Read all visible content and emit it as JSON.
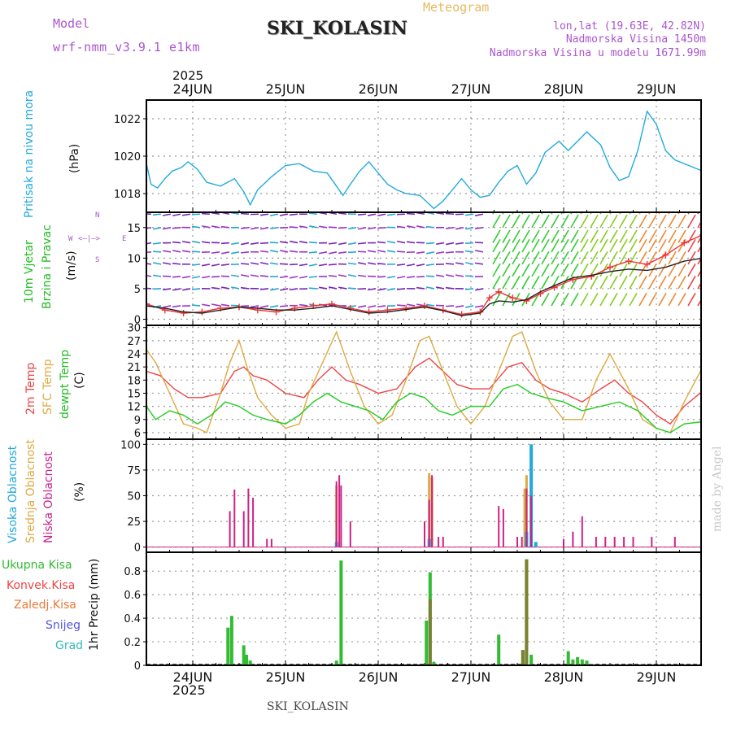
{
  "header": {
    "model_label": "Model",
    "model_name": "wrf-nmm_v3.9.1 e1km",
    "title": "SKI_KOLASIN",
    "subtitle": "Meteogram",
    "coords": "lon,lat (19.63E, 42.82N)",
    "elevation": "Nadmorska Visina 1450m",
    "model_elevation": "Nadmorska Visina u modelu 1671.99m"
  },
  "footer": {
    "station": "SKI_KOLASIN",
    "credit": "made by Angel"
  },
  "x_axis": {
    "year": "2025",
    "days": [
      "24JUN",
      "25JUN",
      "26JUN",
      "27JUN",
      "28JUN",
      "29JUN"
    ]
  },
  "panel_labels": {
    "pressure": {
      "title": "Pritisak na nivou mora",
      "unit": "(hPa)"
    },
    "wind": {
      "title1": "10m Vjetar",
      "title2": "Brzina i Pravac",
      "unit": "(m/s)",
      "compass_n": "N",
      "compass_s": "S",
      "compass_w": "W",
      "compass_e": "E"
    },
    "temp": {
      "title1": "2m Temp",
      "title2": "SFC Temp",
      "title3": "dewpt Temp",
      "unit": "(C)"
    },
    "cloud": {
      "title1": "Visoka Oblacnost",
      "title2": "Srednja Oblacnost",
      "title3": "Niska Oblacnost",
      "unit": "(%)"
    },
    "precip": {
      "legend": [
        "Ukupna Kisa",
        "Konvek.Kisa",
        "Zaledj.Kisa",
        "Snijeg",
        "Grad"
      ],
      "unit": "1hr Precip (mm)"
    }
  },
  "colors": {
    "pressure": "#22aadd",
    "t2m": "#ee4444",
    "tsfc": "#ddaa44",
    "dewpt": "#22cc22",
    "cloud_high": "#22aadd",
    "cloud_mid": "#ddaa44",
    "cloud_low": "#cc2288",
    "rain_total": "#33bb33",
    "rain_conv": "#ee4444",
    "freezing_rain": "#ee7733",
    "snow": "#5555dd",
    "hail": "#33bbbb",
    "title_purple": "#aa55cc",
    "title_orange": "#e8b860"
  },
  "chart_data": [
    {
      "type": "line",
      "name": "pressure",
      "x_unit": "days since 24JUN 00",
      "ylim": [
        1017,
        1023
      ],
      "yticks": [
        1018,
        1020,
        1022
      ],
      "grid": true,
      "series": [
        {
          "name": "Pritisak na nivou mora",
          "x": [
            -0.5,
            -0.45,
            -0.38,
            -0.3,
            -0.22,
            -0.12,
            -0.05,
            0.05,
            0.15,
            0.3,
            0.45,
            0.55,
            0.62,
            0.7,
            0.85,
            1.0,
            1.15,
            1.3,
            1.45,
            1.55,
            1.62,
            1.7,
            1.8,
            1.9,
            2.0,
            2.1,
            2.2,
            2.3,
            2.45,
            2.6,
            2.7,
            2.8,
            2.9,
            3.0,
            3.1,
            3.2,
            3.3,
            3.4,
            3.5,
            3.6,
            3.7,
            3.8,
            3.95,
            4.05,
            4.15,
            4.25,
            4.4,
            4.5,
            4.6,
            4.7,
            4.8,
            4.9,
            5.0,
            5.1,
            5.2,
            5.35,
            5.5
          ],
          "values": [
            1019.6,
            1018.5,
            1018.3,
            1018.8,
            1019.2,
            1019.4,
            1019.7,
            1019.3,
            1018.6,
            1018.4,
            1018.8,
            1018.1,
            1017.4,
            1018.2,
            1018.9,
            1019.5,
            1019.6,
            1019.2,
            1019.1,
            1018.4,
            1017.9,
            1018.5,
            1019.2,
            1019.7,
            1019.1,
            1018.5,
            1018.2,
            1018.0,
            1017.9,
            1017.2,
            1017.6,
            1018.2,
            1018.8,
            1018.2,
            1017.8,
            1017.9,
            1018.6,
            1019.2,
            1019.5,
            1018.5,
            1019.1,
            1020.2,
            1020.8,
            1020.3,
            1020.8,
            1021.3,
            1020.6,
            1019.4,
            1018.7,
            1018.9,
            1020.3,
            1022.4,
            1021.7,
            1020.3,
            1019.8,
            1019.5,
            1019.2
          ]
        }
      ]
    },
    {
      "type": "line",
      "name": "wind",
      "x_unit": "days since 24JUN 00",
      "ylim": [
        -1,
        17.5
      ],
      "yticks": [
        0,
        5,
        10,
        15
      ],
      "grid": true,
      "series": [
        {
          "name": "10m Vjetar",
          "x": [
            -0.5,
            -0.3,
            -0.1,
            0.1,
            0.3,
            0.5,
            0.7,
            0.9,
            1.1,
            1.3,
            1.5,
            1.7,
            1.9,
            2.1,
            2.3,
            2.5,
            2.7,
            2.9,
            3.1,
            3.2,
            3.3,
            3.45,
            3.6,
            3.75,
            3.9,
            4.1,
            4.3,
            4.5,
            4.7,
            4.9,
            5.1,
            5.3,
            5.5
          ],
          "values": [
            2.5,
            1.5,
            1.0,
            1.2,
            1.8,
            2.0,
            1.5,
            1.2,
            1.8,
            2.2,
            2.5,
            1.8,
            1.2,
            1.5,
            1.8,
            2.2,
            1.5,
            0.8,
            1.2,
            3.5,
            4.5,
            3.5,
            3.0,
            4.2,
            5.2,
            6.5,
            7.0,
            8.5,
            9.5,
            9.0,
            10.5,
            12.5,
            13.8
          ]
        },
        {
          "name": "dir",
          "x": [
            -0.5,
            -0.3,
            -0.1,
            0.1,
            0.3,
            0.5,
            0.7,
            0.9,
            1.1,
            1.3,
            1.5,
            1.7,
            1.9,
            2.1,
            2.3,
            2.5,
            2.7,
            2.9,
            3.1,
            3.2,
            3.3,
            3.45,
            3.6,
            3.75,
            3.9,
            4.1,
            4.3,
            4.5,
            4.7,
            4.9,
            5.1,
            5.3,
            5.5
          ],
          "values": [
            2.2,
            1.8,
            1.2,
            1.0,
            1.5,
            2.0,
            1.8,
            1.5,
            1.5,
            1.8,
            2.2,
            1.6,
            1.0,
            1.2,
            1.6,
            2.0,
            1.4,
            0.6,
            1.0,
            2.5,
            3.0,
            2.8,
            3.2,
            4.5,
            5.5,
            6.8,
            7.2,
            7.8,
            8.2,
            8.0,
            8.5,
            9.5,
            10.0
          ]
        }
      ]
    },
    {
      "type": "line",
      "name": "temperature",
      "x_unit": "days since 24JUN 00",
      "ylim": [
        4.5,
        30.5
      ],
      "yticks": [
        6,
        9,
        12,
        15,
        18,
        21,
        24,
        27,
        30
      ],
      "grid": true,
      "series": [
        {
          "name": "2m Temp",
          "x": [
            -0.5,
            -0.35,
            -0.2,
            -0.05,
            0.1,
            0.3,
            0.45,
            0.55,
            0.65,
            0.8,
            1.0,
            1.2,
            1.35,
            1.5,
            1.65,
            1.8,
            2.0,
            2.2,
            2.4,
            2.55,
            2.7,
            2.85,
            3.0,
            3.2,
            3.4,
            3.55,
            3.7,
            3.85,
            4.0,
            4.2,
            4.4,
            4.55,
            4.7,
            4.85,
            5.0,
            5.15,
            5.3,
            5.5
          ],
          "values": [
            20,
            19,
            16,
            14,
            14,
            15,
            20,
            21,
            19,
            18,
            15,
            14,
            18,
            21,
            18,
            17,
            15,
            16,
            21,
            23,
            20,
            17,
            16,
            16,
            21,
            22,
            18,
            16,
            15,
            13,
            16,
            18,
            15,
            13,
            10,
            8,
            12,
            15.5
          ]
        },
        {
          "name": "SFC Temp",
          "x": [
            -0.5,
            -0.4,
            -0.25,
            -0.1,
            0.05,
            0.15,
            0.3,
            0.4,
            0.5,
            0.6,
            0.7,
            0.85,
            1.0,
            1.15,
            1.25,
            1.4,
            1.55,
            1.7,
            1.85,
            2.0,
            2.15,
            2.3,
            2.45,
            2.55,
            2.7,
            2.85,
            3.0,
            3.15,
            3.3,
            3.45,
            3.55,
            3.7,
            3.85,
            4.0,
            4.2,
            4.35,
            4.5,
            4.7,
            4.85,
            5.0,
            5.15,
            5.3,
            5.5
          ],
          "values": [
            25,
            22,
            15,
            8,
            7,
            6,
            15,
            22,
            27,
            20,
            14,
            10,
            7,
            8,
            15,
            22,
            29,
            20,
            12,
            8,
            10,
            18,
            27,
            28,
            20,
            12,
            8,
            12,
            20,
            28,
            29,
            20,
            13,
            9,
            9,
            18,
            24,
            16,
            9,
            7,
            6,
            13,
            21
          ]
        },
        {
          "name": "dewpt Temp",
          "x": [
            -0.5,
            -0.4,
            -0.25,
            -0.1,
            0.05,
            0.2,
            0.35,
            0.5,
            0.65,
            0.8,
            1.0,
            1.15,
            1.3,
            1.45,
            1.6,
            1.75,
            1.9,
            2.05,
            2.2,
            2.35,
            2.5,
            2.65,
            2.8,
            3.0,
            3.2,
            3.35,
            3.5,
            3.65,
            3.8,
            4.0,
            4.2,
            4.4,
            4.6,
            4.8,
            5.0,
            5.15,
            5.3,
            5.5
          ],
          "values": [
            12,
            9,
            11,
            10,
            8,
            10,
            13,
            12,
            10,
            9,
            8,
            10,
            13,
            15,
            13,
            12,
            11,
            9,
            13,
            15,
            14,
            11,
            10,
            12,
            12,
            16,
            17,
            15,
            14,
            13,
            11,
            12,
            13,
            11,
            7,
            6,
            8,
            8.5
          ]
        }
      ]
    },
    {
      "type": "bar",
      "name": "cloud",
      "x_unit": "days since 24JUN 00",
      "ylim": [
        -5,
        105
      ],
      "yticks": [
        0,
        25,
        50,
        75,
        100
      ],
      "grid": true,
      "series": [
        {
          "name": "Visoka Oblacnost",
          "x": [
            1.55,
            2.55,
            3.6,
            3.65,
            3.7
          ],
          "values": [
            5,
            8,
            15,
            100,
            5
          ]
        },
        {
          "name": "Srednja Oblacnost",
          "x": [
            1.55,
            2.55,
            2.58,
            3.58,
            3.6
          ],
          "values": [
            60,
            72,
            68,
            57,
            70
          ]
        },
        {
          "name": "Niska Oblacnost",
          "x": [
            0.4,
            0.45,
            0.5,
            0.55,
            0.6,
            0.65,
            0.8,
            0.85,
            1.55,
            1.58,
            1.6,
            1.7,
            2.5,
            2.55,
            2.58,
            2.65,
            2.7,
            3.3,
            3.35,
            3.5,
            3.55,
            3.6,
            3.65,
            4.0,
            4.1,
            4.2,
            4.35,
            4.45,
            4.55,
            4.65,
            4.75,
            4.95,
            5.2
          ],
          "values": [
            35,
            56,
            0,
            35,
            57,
            48,
            8,
            8,
            64,
            70,
            60,
            25,
            25,
            46,
            70,
            10,
            10,
            40,
            37,
            10,
            10,
            57,
            50,
            8,
            15,
            30,
            10,
            10,
            10,
            10,
            10,
            10,
            10
          ]
        }
      ]
    },
    {
      "type": "bar",
      "name": "precip",
      "x_unit": "days since 24JUN 00",
      "ylim": [
        0,
        0.96
      ],
      "yticks": [
        0,
        0.2,
        0.4,
        0.6,
        0.8
      ],
      "grid": true,
      "series": [
        {
          "name": "Ukupna Kisa",
          "x": [
            0.38,
            0.42,
            0.55,
            0.58,
            0.62,
            1.55,
            1.6,
            2.52,
            2.56,
            2.6,
            3.3,
            3.56,
            3.6,
            3.65,
            4.05,
            4.1,
            4.15,
            4.2,
            4.25,
            4.3,
            4.5,
            4.85
          ],
          "values": [
            0.32,
            0.42,
            0.17,
            0.09,
            0.04,
            0.04,
            0.89,
            0.38,
            0.79,
            0.03,
            0.26,
            0.13,
            0.9,
            0.09,
            0.12,
            0.05,
            0.07,
            0.05,
            0.04,
            0.01,
            0.01,
            0.01
          ]
        },
        {
          "name": "Konvek.Kisa",
          "x": [
            2.56,
            3.56,
            3.6
          ],
          "values": [
            0.56,
            0.13,
            0.9
          ]
        }
      ]
    }
  ]
}
